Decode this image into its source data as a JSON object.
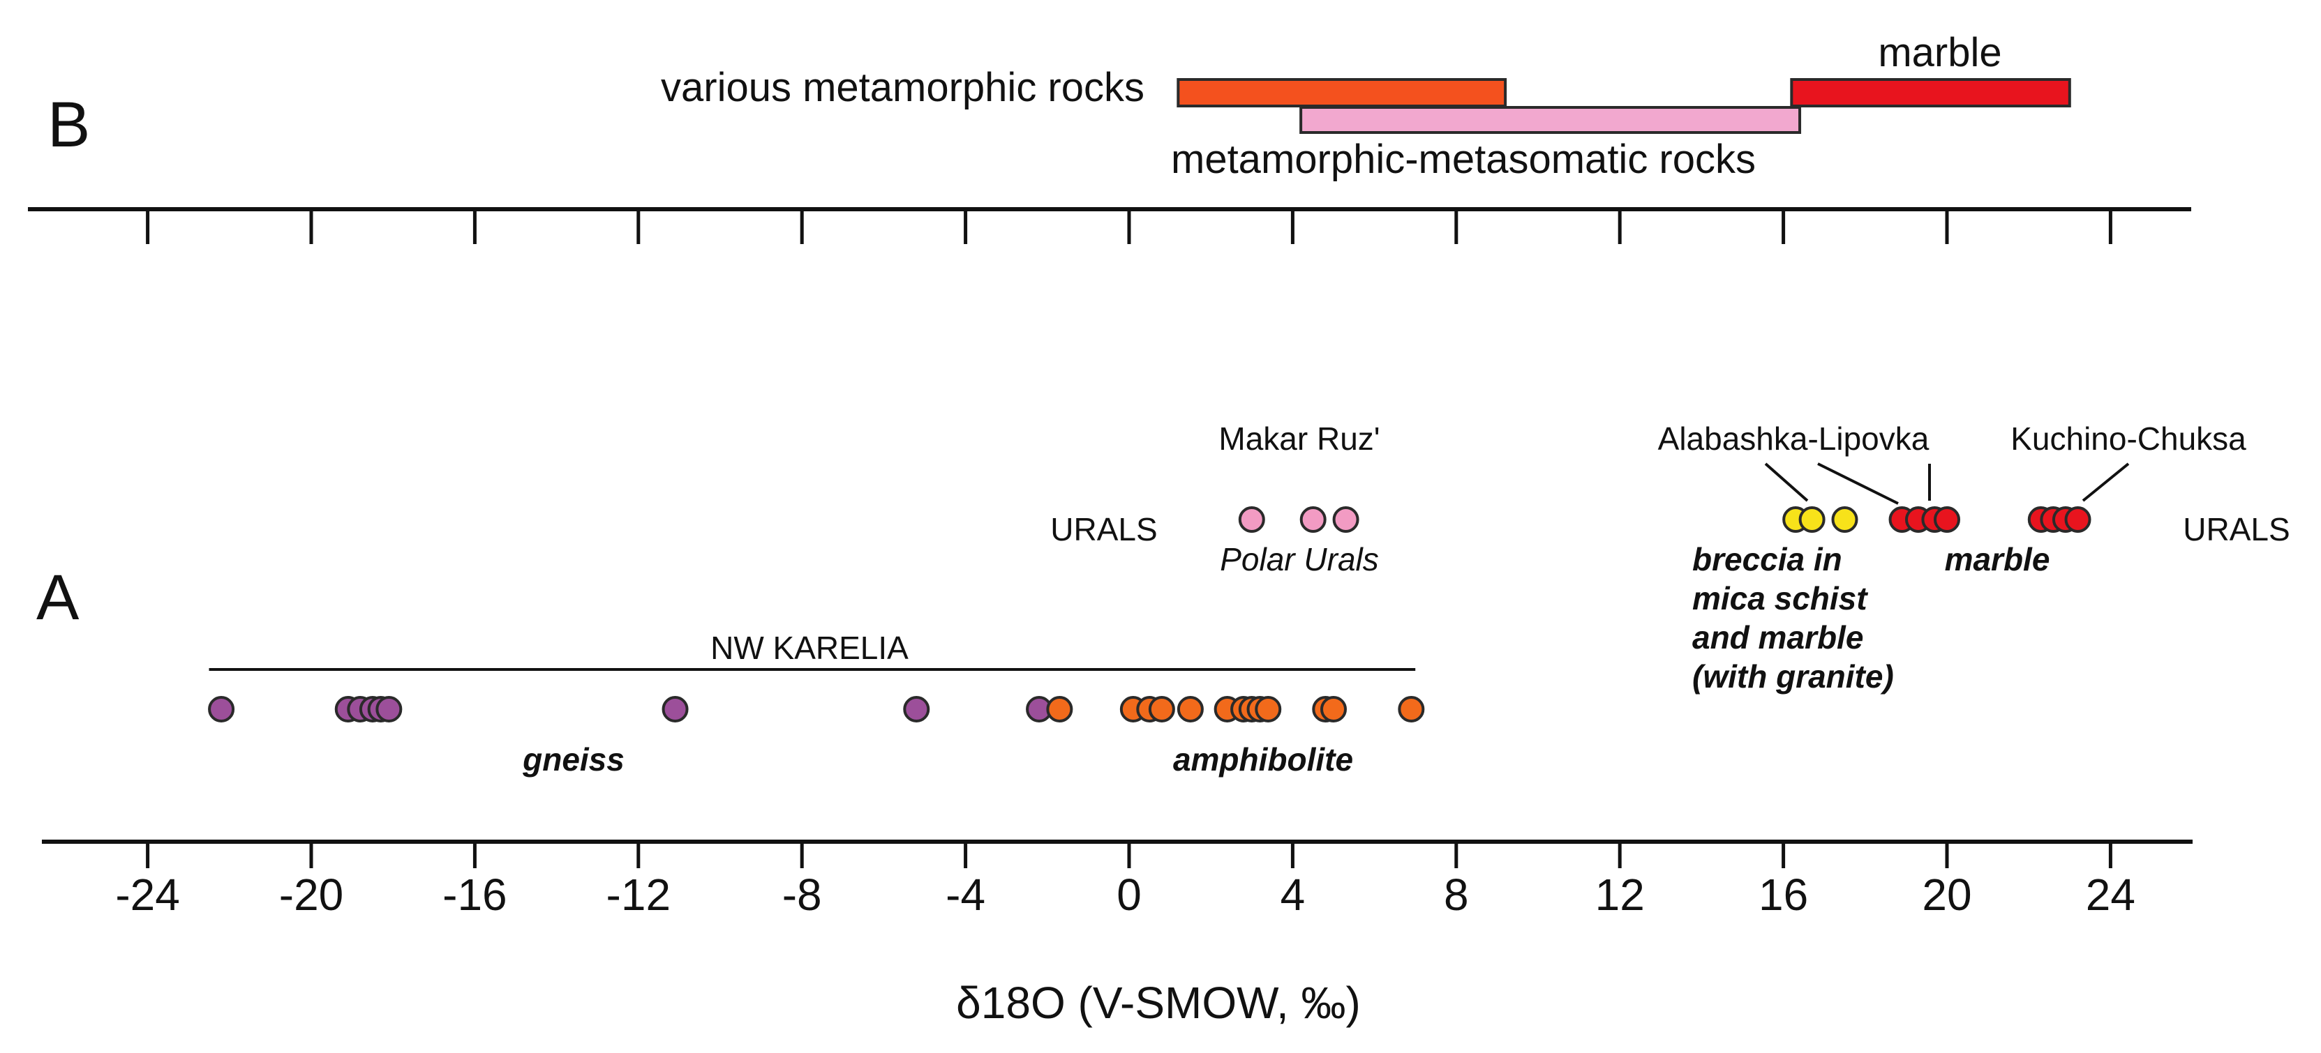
{
  "chart_data": {
    "type": "scatter",
    "xlabel": "δ18O (V-SMOW, ‰)",
    "xlim": [
      -26.5,
      26.5
    ],
    "ticks": [
      -24,
      -20,
      -16,
      -12,
      -8,
      -4,
      0,
      4,
      8,
      12,
      16,
      20,
      24
    ],
    "tick_labels": [
      "-24",
      "-20",
      "-16",
      "-12",
      "-8",
      "-4",
      "0",
      "4",
      "8",
      "12",
      "16",
      "20",
      "24"
    ],
    "panels": {
      "A": "A",
      "B": "B"
    },
    "ranges": [
      {
        "label": "various metamorphic rocks",
        "min": 1.2,
        "max": 9.2,
        "color": "#f4511e"
      },
      {
        "label": "metamorphic-metasomatic rocks",
        "min": 4.2,
        "max": 16.4,
        "color": "#f2a8cf"
      },
      {
        "label": "marble",
        "min": 16.2,
        "max": 23.0,
        "color": "#e8141e"
      }
    ],
    "karelia_label": "NW KARELIA",
    "karelia_range": [
      -22.5,
      7.0
    ],
    "group_labels": {
      "gneiss": "gneiss",
      "amphibolite": "amphibolite",
      "urals_left": "URALS",
      "urals_right": "URALS",
      "makar_ruz": "Makar Ruz'",
      "polar_urals": "Polar Urals",
      "alabashka": "Alabashka-Lipovka",
      "kuchino": "Kuchino-Chuksa",
      "breccia": [
        "breccia in",
        "mica schist",
        "and marble",
        "(with granite)"
      ],
      "marble": "marble"
    },
    "series": [
      {
        "name": "gneiss",
        "color": "#9c4f9a",
        "row": "karelia",
        "values": [
          -22.2,
          -19.1,
          -18.8,
          -18.5,
          -18.3,
          -18.1,
          -11.1,
          -5.2,
          -2.2
        ]
      },
      {
        "name": "amphibolite",
        "color": "#f26a1b",
        "row": "karelia",
        "values": [
          -1.7,
          0.1,
          0.5,
          0.8,
          1.5,
          2.4,
          2.8,
          3.0,
          3.2,
          3.4,
          4.8,
          5.0,
          6.9
        ]
      },
      {
        "name": "Polar Urals",
        "color": "#f29bc3",
        "row": "urals",
        "values": [
          3.0,
          4.5,
          5.3
        ]
      },
      {
        "name": "breccia in mica schist and marble (with granite)",
        "color": "#f7e21a",
        "row": "urals",
        "values": [
          16.3,
          16.7,
          17.5
        ]
      },
      {
        "name": "marble",
        "color": "#e8141e",
        "row": "urals",
        "values": [
          18.9,
          19.3,
          19.7,
          20.0,
          22.3,
          22.6,
          22.9,
          23.2
        ]
      }
    ]
  }
}
